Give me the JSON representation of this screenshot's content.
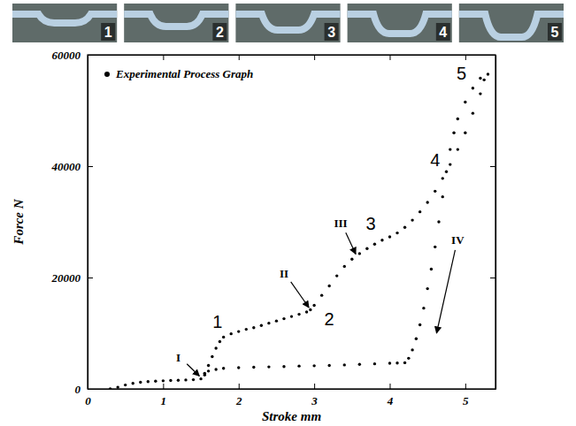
{
  "photos": {
    "labels": [
      "1",
      "2",
      "3",
      "4",
      "5"
    ]
  },
  "chart_data": {
    "type": "scatter",
    "x_label": "Stroke mm",
    "y_label": "Force N",
    "xlim": [
      0,
      5.4
    ],
    "xticks": [
      0,
      1,
      2,
      3,
      4,
      5
    ],
    "ylim": [
      0,
      60000
    ],
    "yticks": [
      0,
      20000,
      40000,
      60000
    ],
    "grid": false,
    "legend": "upper left",
    "x": [
      0.3,
      0.4,
      0.5,
      0.6,
      0.7,
      0.8,
      0.9,
      1.0,
      1.1,
      1.2,
      1.3,
      1.4,
      1.5,
      1.55,
      1.6,
      1.65,
      1.7,
      1.75,
      1.8,
      1.9,
      2.0,
      2.1,
      2.2,
      2.3,
      2.4,
      2.5,
      2.6,
      2.7,
      2.8,
      2.9,
      2.95,
      3.0,
      3.1,
      3.2,
      3.3,
      3.4,
      3.5,
      3.6,
      3.7,
      3.8,
      3.9,
      4.0,
      4.1,
      4.2,
      4.3,
      4.4,
      4.5,
      4.6,
      4.7,
      4.8,
      4.9,
      5.0,
      5.1,
      5.2,
      5.25,
      5.3,
      1.55,
      1.6,
      1.7,
      1.8,
      2.0,
      2.2,
      2.4,
      2.6,
      2.8,
      3.0,
      3.2,
      3.4,
      3.6,
      3.8,
      4.0,
      4.1,
      4.2,
      4.25,
      4.3,
      4.35,
      4.4,
      4.45,
      4.5,
      4.55,
      4.6,
      4.65,
      4.7,
      4.75,
      4.8,
      4.85,
      4.9,
      5.0,
      5.1,
      5.2
    ],
    "series": [
      {
        "name": "Experimental Process Graph",
        "color": "#000000",
        "marker": "circle",
        "values": [
          0,
          300,
          700,
          1000,
          1200,
          1300,
          1400,
          1450,
          1500,
          1550,
          1600,
          1650,
          1800,
          2800,
          4200,
          5800,
          7300,
          8500,
          9300,
          9900,
          10300,
          10700,
          11000,
          11400,
          11800,
          12200,
          12600,
          13000,
          13400,
          13800,
          14200,
          15000,
          16800,
          18500,
          20300,
          22000,
          23300,
          24300,
          25200,
          26000,
          26700,
          27300,
          28000,
          29000,
          30300,
          31800,
          33500,
          35500,
          37800,
          40300,
          43000,
          46000,
          49500,
          53000,
          55500,
          56500,
          2500,
          3200,
          3500,
          3700,
          3800,
          3900,
          3950,
          4000,
          4100,
          4150,
          4200,
          4300,
          4400,
          4500,
          4600,
          4650,
          4700,
          5500,
          7000,
          9000,
          11500,
          14500,
          18000,
          21500,
          25500,
          30000,
          34500,
          39000,
          43000,
          46000,
          48500,
          51500,
          54000,
          55800
        ]
      }
    ],
    "annotations": [
      {
        "text": "I",
        "x": 1.2,
        "y": 5000,
        "arrow": {
          "x": 1.48,
          "y": 2300
        }
      },
      {
        "text": "1",
        "x": 1.72,
        "y": 11000
      },
      {
        "text": "II",
        "x": 2.6,
        "y": 20000,
        "arrow": {
          "x": 2.93,
          "y": 14600
        }
      },
      {
        "text": "2",
        "x": 3.2,
        "y": 11500
      },
      {
        "text": "III",
        "x": 3.35,
        "y": 29000,
        "arrow": {
          "x": 3.55,
          "y": 24200
        }
      },
      {
        "text": "3",
        "x": 3.75,
        "y": 28500
      },
      {
        "text": "4",
        "x": 4.6,
        "y": 40000
      },
      {
        "text": "5",
        "x": 4.95,
        "y": 55500
      },
      {
        "text": "IV",
        "x": 4.9,
        "y": 26000,
        "arrow": {
          "x": 4.62,
          "y": 10000
        }
      }
    ]
  }
}
